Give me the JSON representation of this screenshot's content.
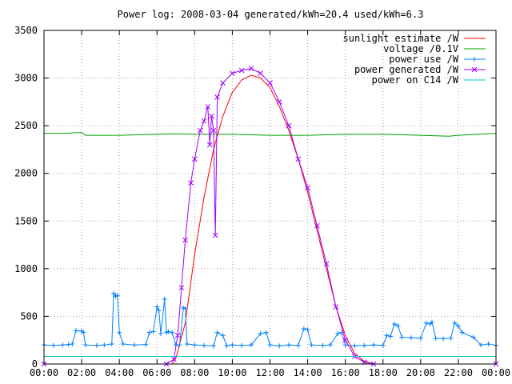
{
  "chart_data": {
    "type": "line",
    "title": "Power log: 2008-03-04 generated/kWh=20.4 used/kWh=6.3",
    "xlabel": "",
    "ylabel": "",
    "x_unit": "hours",
    "xlim": [
      0,
      24
    ],
    "ylim": [
      0,
      3500
    ],
    "x_ticks": [
      0,
      2,
      4,
      6,
      8,
      10,
      12,
      14,
      16,
      18,
      20,
      22,
      24
    ],
    "x_tick_labels": [
      "00:00",
      "02:00",
      "04:00",
      "06:00",
      "08:00",
      "10:00",
      "12:00",
      "14:00",
      "16:00",
      "18:00",
      "20:00",
      "22:00",
      "00:00"
    ],
    "y_ticks": [
      0,
      500,
      1000,
      1500,
      2000,
      2500,
      3000,
      3500
    ],
    "y_tick_labels": [
      "0",
      "500",
      "1000",
      "1500",
      "2000",
      "2500",
      "3000",
      "3500"
    ],
    "grid": true,
    "legend_position": "top-right",
    "series": [
      {
        "name": "sunlight estimate /W",
        "color": "#ff0000",
        "marker": "none",
        "points": [
          [
            0,
            0
          ],
          [
            6.8,
            0
          ],
          [
            7.0,
            60
          ],
          [
            7.5,
            430
          ],
          [
            8.0,
            1150
          ],
          [
            8.5,
            1750
          ],
          [
            9.0,
            2250
          ],
          [
            9.5,
            2600
          ],
          [
            10.0,
            2850
          ],
          [
            10.5,
            2980
          ],
          [
            11.0,
            3030
          ],
          [
            11.5,
            3000
          ],
          [
            12.0,
            2900
          ],
          [
            12.5,
            2700
          ],
          [
            13.0,
            2450
          ],
          [
            13.5,
            2150
          ],
          [
            14.0,
            1800
          ],
          [
            14.5,
            1400
          ],
          [
            15.0,
            1000
          ],
          [
            15.5,
            600
          ],
          [
            16.0,
            300
          ],
          [
            16.5,
            110
          ],
          [
            17.0,
            30
          ],
          [
            17.5,
            0
          ],
          [
            24,
            0
          ]
        ]
      },
      {
        "name": "voltage /0.1V",
        "color": "#00a000",
        "marker": "none",
        "points": [
          [
            0,
            2420
          ],
          [
            1.0,
            2420
          ],
          [
            2.0,
            2430
          ],
          [
            2.2,
            2400
          ],
          [
            4.0,
            2400
          ],
          [
            6.0,
            2410
          ],
          [
            7.0,
            2415
          ],
          [
            8.0,
            2410
          ],
          [
            10.0,
            2410
          ],
          [
            12.0,
            2400
          ],
          [
            14.0,
            2400
          ],
          [
            16.0,
            2410
          ],
          [
            18.0,
            2410
          ],
          [
            20.0,
            2400
          ],
          [
            21.5,
            2390
          ],
          [
            22.0,
            2400
          ],
          [
            24,
            2420
          ]
        ]
      },
      {
        "name": "power use /W",
        "color": "#0080ff",
        "marker": "plus",
        "points": [
          [
            0,
            200
          ],
          [
            0.5,
            195
          ],
          [
            1.0,
            200
          ],
          [
            1.3,
            205
          ],
          [
            1.5,
            210
          ],
          [
            1.7,
            350
          ],
          [
            2.0,
            345
          ],
          [
            2.1,
            330
          ],
          [
            2.2,
            200
          ],
          [
            2.8,
            195
          ],
          [
            3.2,
            200
          ],
          [
            3.6,
            210
          ],
          [
            3.7,
            740
          ],
          [
            3.8,
            710
          ],
          [
            3.9,
            720
          ],
          [
            4.0,
            330
          ],
          [
            4.2,
            210
          ],
          [
            4.8,
            200
          ],
          [
            5.4,
            205
          ],
          [
            5.6,
            330
          ],
          [
            5.8,
            340
          ],
          [
            6.0,
            600
          ],
          [
            6.1,
            560
          ],
          [
            6.2,
            320
          ],
          [
            6.4,
            680
          ],
          [
            6.5,
            330
          ],
          [
            6.6,
            340
          ],
          [
            6.8,
            330
          ],
          [
            7.0,
            200
          ],
          [
            7.2,
            200
          ],
          [
            7.4,
            590
          ],
          [
            7.5,
            580
          ],
          [
            7.6,
            210
          ],
          [
            8.0,
            200
          ],
          [
            8.5,
            195
          ],
          [
            9.0,
            190
          ],
          [
            9.2,
            330
          ],
          [
            9.5,
            300
          ],
          [
            9.7,
            190
          ],
          [
            10.0,
            200
          ],
          [
            10.5,
            195
          ],
          [
            11.0,
            200
          ],
          [
            11.5,
            320
          ],
          [
            11.8,
            330
          ],
          [
            12.0,
            200
          ],
          [
            12.5,
            190
          ],
          [
            13.0,
            200
          ],
          [
            13.5,
            195
          ],
          [
            13.8,
            370
          ],
          [
            14.0,
            360
          ],
          [
            14.2,
            200
          ],
          [
            14.8,
            195
          ],
          [
            15.2,
            200
          ],
          [
            15.6,
            320
          ],
          [
            15.8,
            330
          ],
          [
            16.0,
            200
          ],
          [
            16.5,
            190
          ],
          [
            17.0,
            195
          ],
          [
            17.5,
            200
          ],
          [
            18.0,
            195
          ],
          [
            18.2,
            300
          ],
          [
            18.4,
            290
          ],
          [
            18.6,
            420
          ],
          [
            18.8,
            400
          ],
          [
            19.0,
            280
          ],
          [
            19.5,
            275
          ],
          [
            20.0,
            270
          ],
          [
            20.3,
            430
          ],
          [
            20.5,
            420
          ],
          [
            20.6,
            440
          ],
          [
            20.8,
            270
          ],
          [
            21.2,
            265
          ],
          [
            21.6,
            270
          ],
          [
            21.8,
            430
          ],
          [
            22.0,
            400
          ],
          [
            22.2,
            330
          ],
          [
            22.8,
            280
          ],
          [
            23.2,
            200
          ],
          [
            23.6,
            210
          ],
          [
            24,
            195
          ]
        ]
      },
      {
        "name": "power generated /W",
        "color": "#a000ff",
        "marker": "cross",
        "points": [
          [
            0,
            0
          ],
          [
            6.5,
            0
          ],
          [
            6.9,
            50
          ],
          [
            7.1,
            300
          ],
          [
            7.3,
            800
          ],
          [
            7.5,
            1300
          ],
          [
            7.8,
            1900
          ],
          [
            8.0,
            2150
          ],
          [
            8.3,
            2450
          ],
          [
            8.5,
            2550
          ],
          [
            8.7,
            2700
          ],
          [
            8.8,
            2300
          ],
          [
            8.9,
            2600
          ],
          [
            9.0,
            2450
          ],
          [
            9.1,
            1350
          ],
          [
            9.2,
            2800
          ],
          [
            9.5,
            2950
          ],
          [
            10.0,
            3050
          ],
          [
            10.5,
            3080
          ],
          [
            11.0,
            3100
          ],
          [
            11.5,
            3050
          ],
          [
            12.0,
            2950
          ],
          [
            12.5,
            2750
          ],
          [
            13.0,
            2500
          ],
          [
            13.5,
            2150
          ],
          [
            14.0,
            1850
          ],
          [
            14.5,
            1450
          ],
          [
            15.0,
            1050
          ],
          [
            15.5,
            600
          ],
          [
            16.0,
            250
          ],
          [
            16.5,
            80
          ],
          [
            17.0,
            20
          ],
          [
            17.5,
            0
          ],
          [
            24,
            0
          ]
        ]
      },
      {
        "name": "power on C14 /W",
        "color": "#00c8c8",
        "marker": "none",
        "points": [
          [
            0,
            80
          ],
          [
            24,
            80
          ]
        ]
      }
    ]
  }
}
